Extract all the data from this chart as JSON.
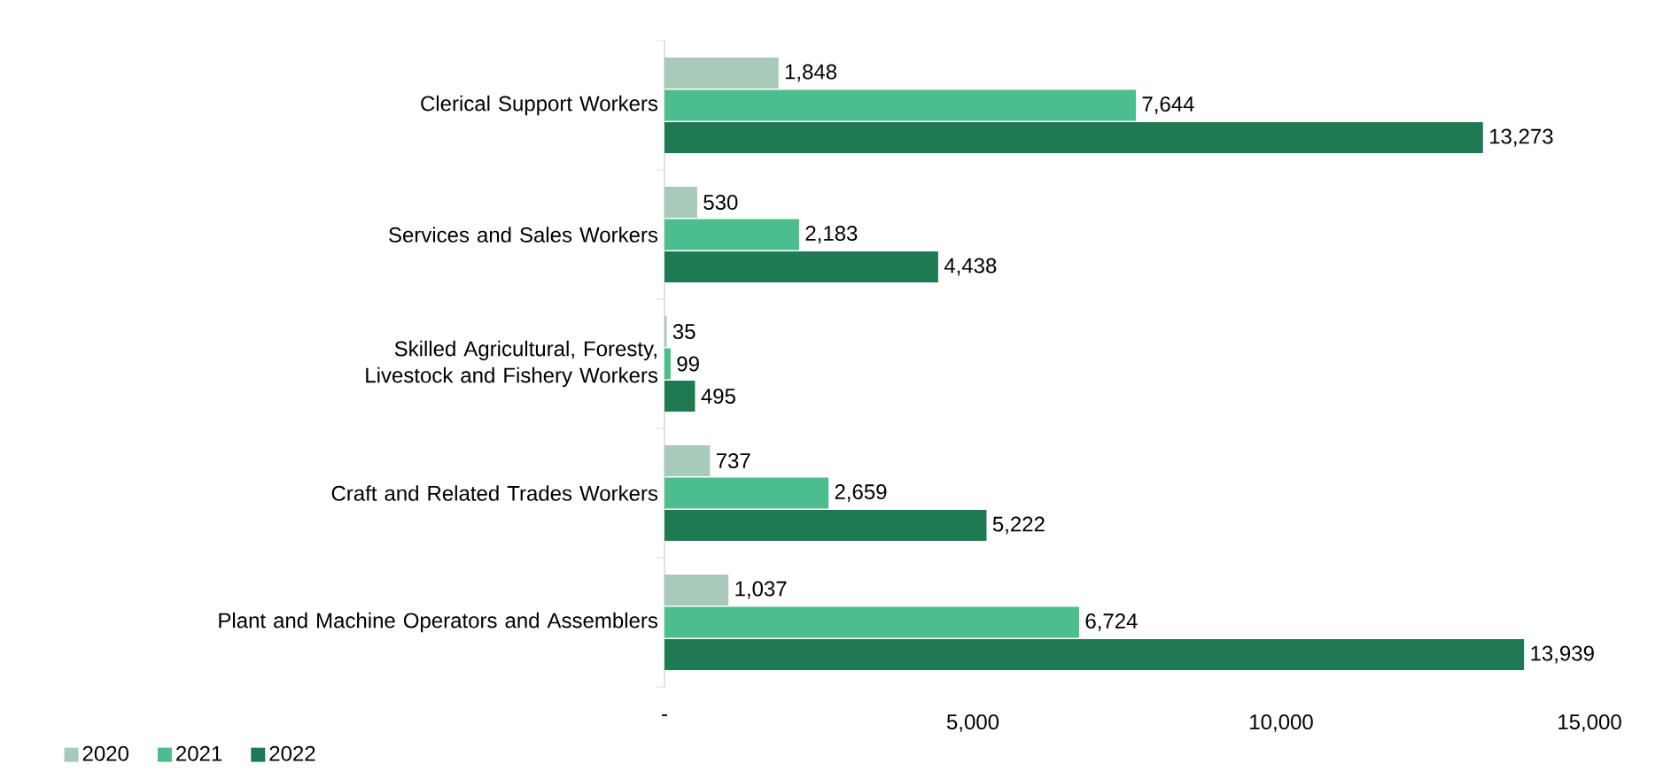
{
  "chart_data": {
    "type": "bar",
    "orientation": "horizontal",
    "categories": [
      "Clerical Support Workers",
      "Services and Sales Workers",
      "Skilled Agricultural, Foresty, Livestock and Fishery Workers",
      "Craft and Related Trades Workers",
      "Plant and Machine Operators and Assemblers"
    ],
    "series": [
      {
        "name": "2020",
        "color": "#a9c9b9",
        "values": [
          1848,
          530,
          35,
          737,
          1037
        ],
        "value_labels": [
          "1,848",
          "530",
          "35",
          "737",
          "1,037"
        ]
      },
      {
        "name": "2021",
        "color": "#4cbd8c",
        "values": [
          7644,
          2183,
          99,
          2659,
          6724
        ],
        "value_labels": [
          "7,644",
          "2,183",
          "99",
          "2,659",
          "6,724"
        ]
      },
      {
        "name": "2022",
        "color": "#1f7a54",
        "values": [
          13273,
          4438,
          495,
          5222,
          13939
        ],
        "value_labels": [
          "13,273",
          "4,438",
          "495",
          "5,222",
          "13,939"
        ]
      }
    ],
    "xlim": [
      0,
      15000
    ],
    "xticks": [
      {
        "value": 0,
        "label": "-"
      },
      {
        "value": 5000,
        "label": "5,000"
      },
      {
        "value": 10000,
        "label": "10,000"
      },
      {
        "value": 15000,
        "label": "15,000"
      }
    ],
    "legend": "bottom left"
  }
}
